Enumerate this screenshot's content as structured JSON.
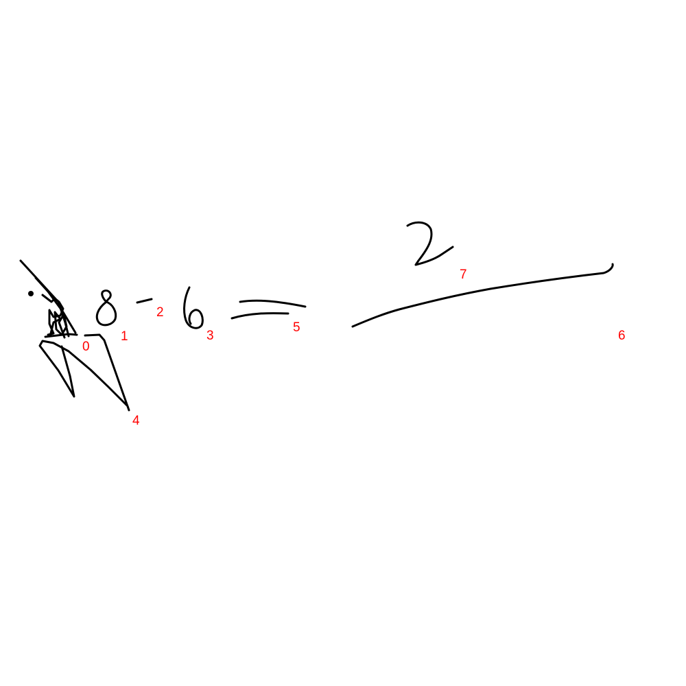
{
  "canvas": {
    "background": "#ffffff",
    "ink_color": "#000000",
    "label_color": "#ff0000"
  },
  "strokes": [
    {
      "id": "stroke-0",
      "label": "0"
    },
    {
      "id": "stroke-1",
      "label": "1"
    },
    {
      "id": "stroke-2",
      "label": "2"
    },
    {
      "id": "stroke-3",
      "label": "3"
    },
    {
      "id": "stroke-4",
      "label": "4"
    },
    {
      "id": "stroke-5",
      "label": "5"
    },
    {
      "id": "stroke-6",
      "label": "6"
    },
    {
      "id": "stroke-7",
      "label": "7"
    }
  ]
}
